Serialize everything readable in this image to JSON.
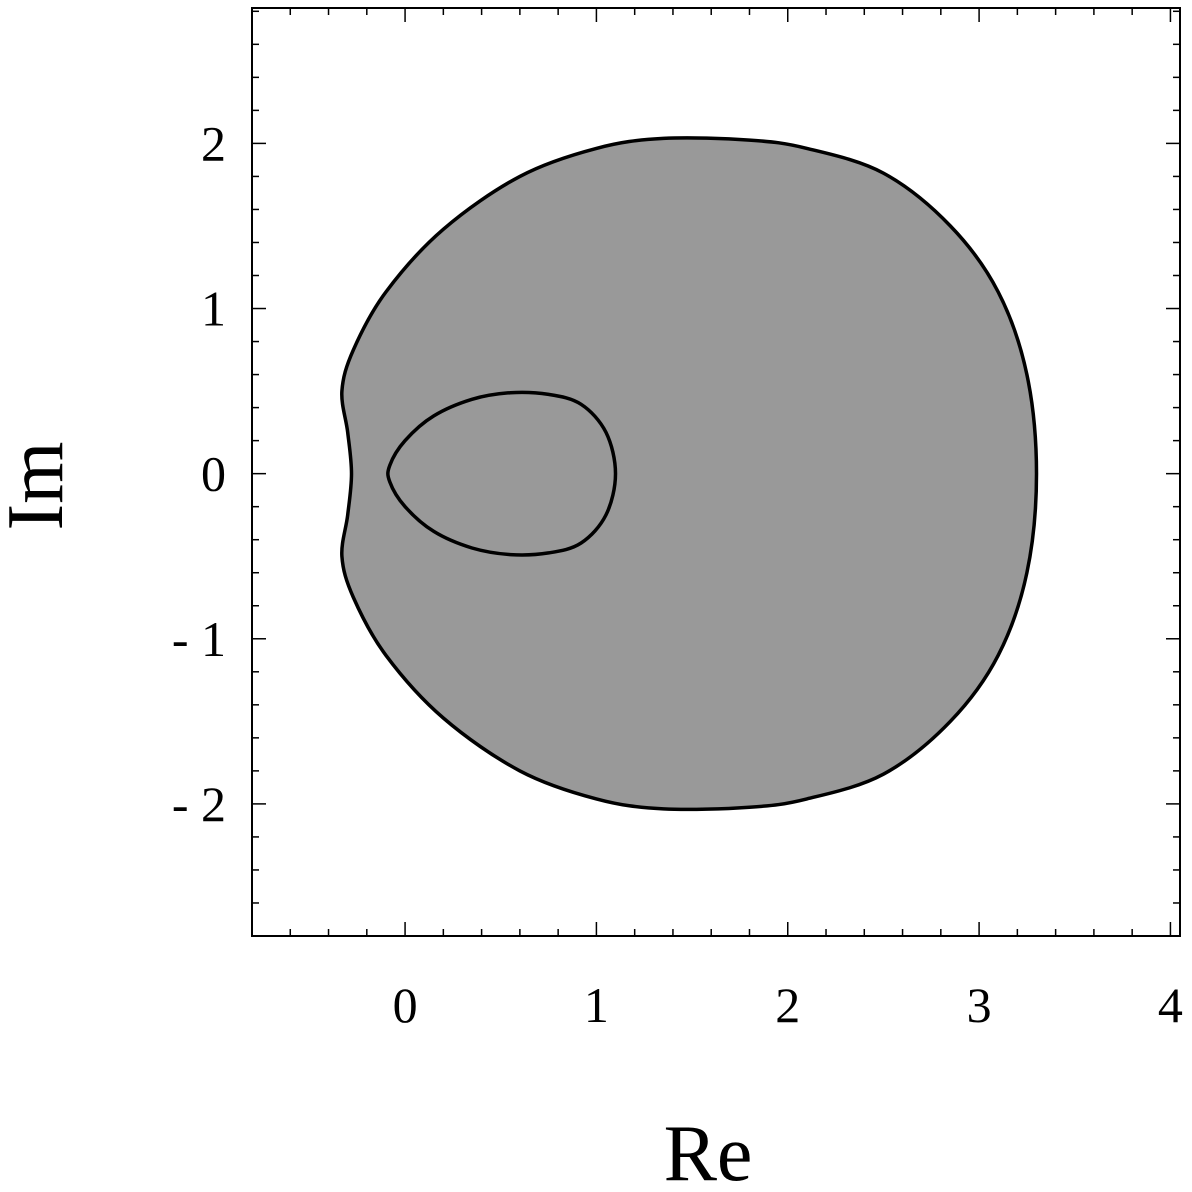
{
  "chart_data": {
    "type": "area",
    "title": "",
    "xlabel": "Re",
    "ylabel": "Im",
    "xlim": [
      -0.8,
      4.05
    ],
    "ylim": [
      -2.8,
      2.82
    ],
    "x_ticks": [
      0,
      1,
      2,
      3,
      4
    ],
    "x_tick_labels": [
      "0",
      "1",
      "2",
      "3",
      "4"
    ],
    "y_ticks": [
      -2,
      -1,
      0,
      1,
      2
    ],
    "y_tick_labels": [
      "- 2",
      "- 1",
      "0",
      "1",
      "2"
    ],
    "minor_tick_step": 0.2,
    "grid": false,
    "legend": "none",
    "fill_color": "#999999",
    "stroke_color": "#000000",
    "series": [
      {
        "role": "outer-boundary",
        "points": [
          [
            3.3,
            0.0
          ],
          [
            3.25,
            0.6
          ],
          [
            3.1,
            1.1
          ],
          [
            2.85,
            1.5
          ],
          [
            2.5,
            1.82
          ],
          [
            2.1,
            1.97
          ],
          [
            1.8,
            2.02
          ],
          [
            1.35,
            2.03
          ],
          [
            1.0,
            1.97
          ],
          [
            0.6,
            1.8
          ],
          [
            0.2,
            1.48
          ],
          [
            -0.1,
            1.1
          ],
          [
            -0.27,
            0.75
          ],
          [
            -0.33,
            0.5
          ],
          [
            -0.3,
            0.25
          ],
          [
            -0.28,
            0.0
          ],
          [
            -0.3,
            -0.25
          ],
          [
            -0.33,
            -0.5
          ],
          [
            -0.27,
            -0.75
          ],
          [
            -0.1,
            -1.1
          ],
          [
            0.2,
            -1.48
          ],
          [
            0.6,
            -1.8
          ],
          [
            1.0,
            -1.97
          ],
          [
            1.35,
            -2.03
          ],
          [
            1.8,
            -2.02
          ],
          [
            2.1,
            -1.97
          ],
          [
            2.5,
            -1.82
          ],
          [
            2.85,
            -1.5
          ],
          [
            3.1,
            -1.1
          ],
          [
            3.25,
            -0.6
          ]
        ]
      },
      {
        "role": "inner-boundary",
        "points": [
          [
            1.1,
            0.0
          ],
          [
            1.05,
            0.25
          ],
          [
            0.92,
            0.42
          ],
          [
            0.75,
            0.48
          ],
          [
            0.55,
            0.49
          ],
          [
            0.35,
            0.45
          ],
          [
            0.15,
            0.35
          ],
          [
            0.0,
            0.2
          ],
          [
            -0.08,
            0.05
          ],
          [
            -0.08,
            -0.05
          ],
          [
            0.0,
            -0.2
          ],
          [
            0.15,
            -0.35
          ],
          [
            0.35,
            -0.45
          ],
          [
            0.55,
            -0.49
          ],
          [
            0.75,
            -0.48
          ],
          [
            0.92,
            -0.42
          ],
          [
            1.05,
            -0.25
          ]
        ]
      }
    ]
  }
}
